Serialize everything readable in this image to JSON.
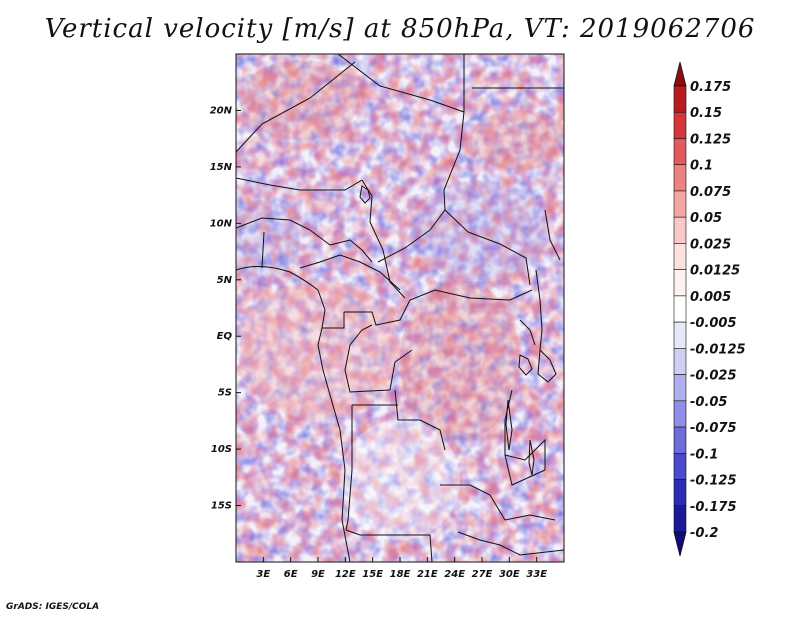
{
  "title": "Vertical velocity [m/s] at 850hPa, VT: 2019062706",
  "footer": "GrADS: IGES/COLA",
  "map": {
    "lon_range": [
      0,
      36
    ],
    "lat_range": [
      -20,
      25
    ],
    "lon_ticks": [
      "3E",
      "6E",
      "9E",
      "12E",
      "15E",
      "18E",
      "21E",
      "24E",
      "27E",
      "30E",
      "33E"
    ],
    "lon_tick_values": [
      3,
      6,
      9,
      12,
      15,
      18,
      21,
      24,
      27,
      30,
      33
    ],
    "lat_ticks": [
      "20N",
      "15N",
      "10N",
      "5N",
      "EQ",
      "5S",
      "10S",
      "15S"
    ],
    "lat_tick_values": [
      20,
      15,
      10,
      5,
      0,
      -5,
      -10,
      -15
    ]
  },
  "colorbar": {
    "labels": [
      "0.175",
      "0.15",
      "0.125",
      "0.1",
      "0.075",
      "0.05",
      "0.025",
      "0.0125",
      "0.005",
      "-0.005",
      "-0.0125",
      "-0.025",
      "-0.05",
      "-0.075",
      "-0.1",
      "-0.125",
      "-0.175",
      "-0.2"
    ],
    "colors": [
      "#8e0b12",
      "#b81c22",
      "#d4343a",
      "#e35a5c",
      "#ec8281",
      "#f3a8a5",
      "#f8c9c6",
      "#fce1df",
      "#fff2f1",
      "#ffffff",
      "#e8e8fb",
      "#cfcff6",
      "#b0b0ef",
      "#8e8ee6",
      "#6c6cdb",
      "#4a4acd",
      "#2c2cb6",
      "#1a1a9a",
      "#0d0d7a"
    ]
  }
}
